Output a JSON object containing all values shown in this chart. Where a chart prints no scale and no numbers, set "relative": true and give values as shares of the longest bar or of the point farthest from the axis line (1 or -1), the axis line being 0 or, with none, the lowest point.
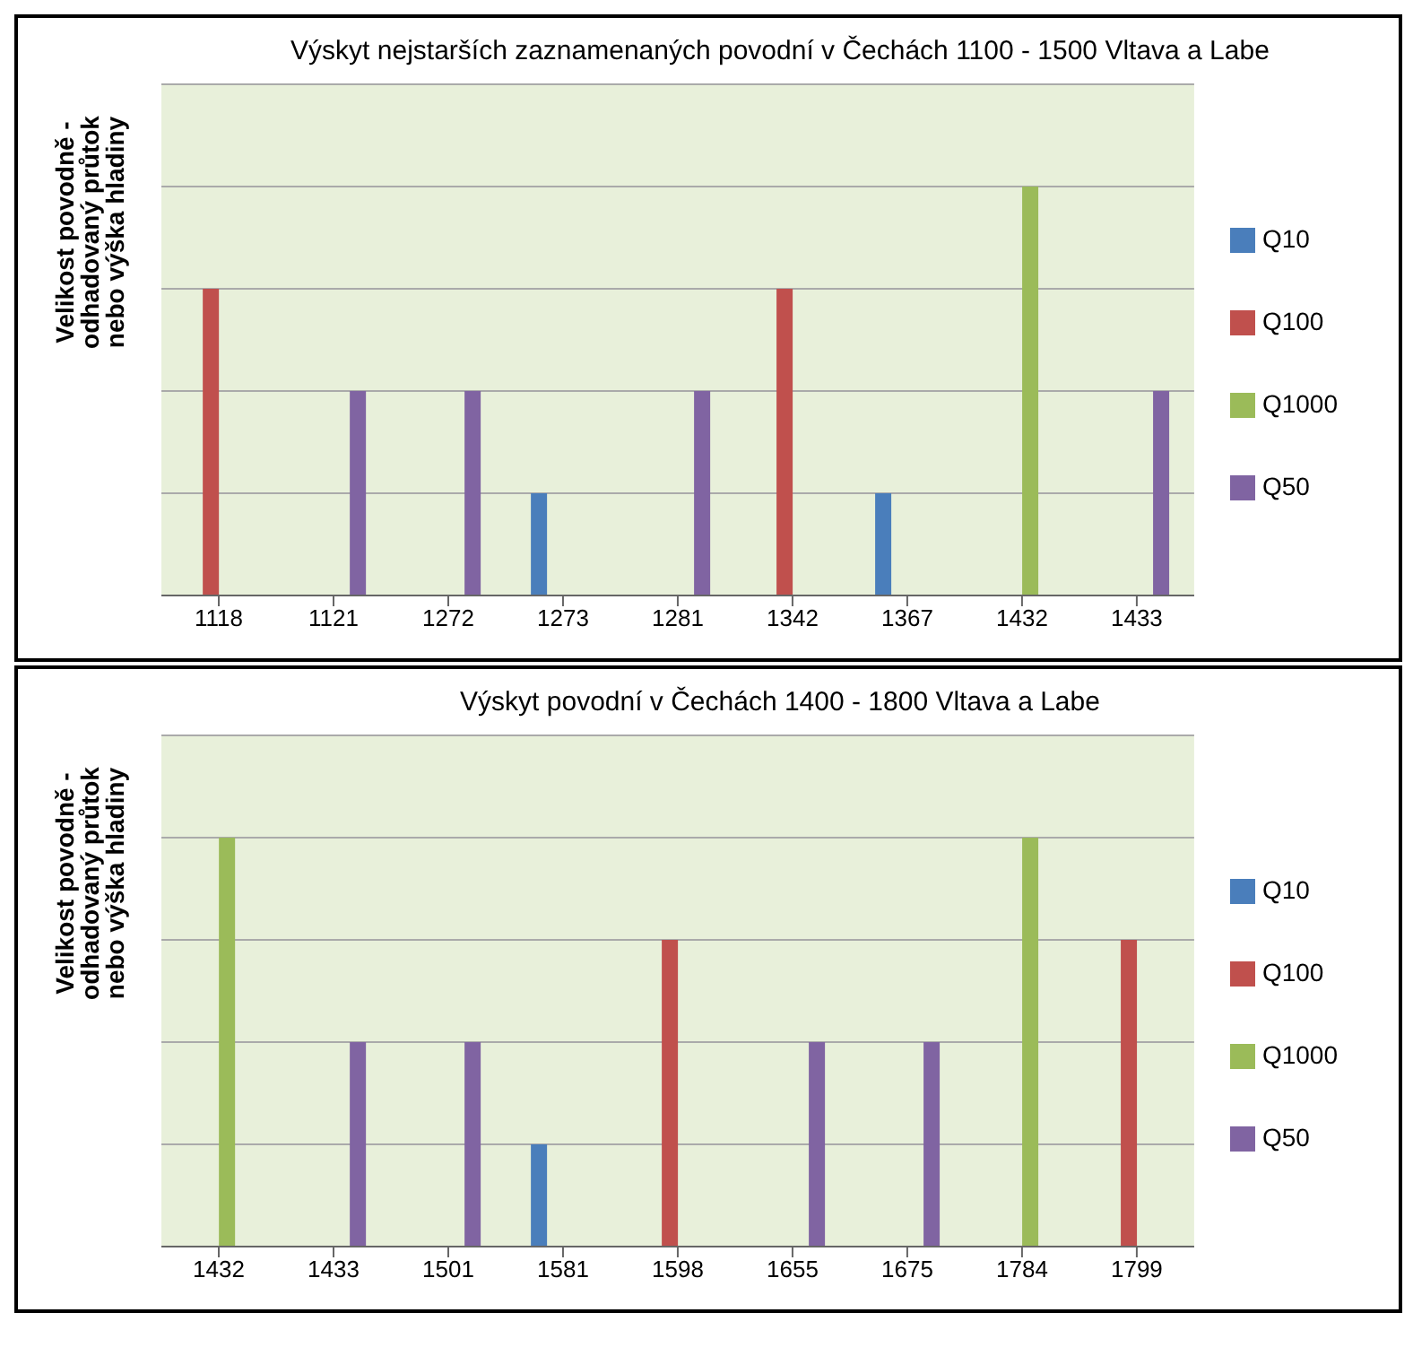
{
  "chart_data": [
    {
      "type": "bar",
      "title": "Výskyt nejstarších zaznamenaných povodní v Čechách 1100 - 1500  Vltava a Labe",
      "ylabel": "Velikost povodně - odhadovaný průtok nebo výška hladiny",
      "relative": true,
      "grid": "y",
      "legend": "right",
      "categories": [
        "1118",
        "1121",
        "1272",
        "1273",
        "1281",
        "1342",
        "1367",
        "1432",
        "1433"
      ],
      "series": [
        {
          "name": "Q10",
          "color": "#4a7ebb",
          "values": [
            null,
            null,
            null,
            0.25,
            null,
            null,
            0.25,
            null,
            null
          ]
        },
        {
          "name": "Q100",
          "color": "#c0504d",
          "values": [
            0.75,
            null,
            null,
            null,
            null,
            0.75,
            null,
            null,
            null
          ]
        },
        {
          "name": "Q1000",
          "color": "#9bbb59",
          "values": [
            null,
            null,
            null,
            null,
            null,
            null,
            null,
            1,
            null
          ]
        },
        {
          "name": "Q50",
          "color": "#8064a2",
          "values": [
            null,
            0.5,
            0.5,
            null,
            0.5,
            null,
            null,
            null,
            0.5
          ]
        }
      ]
    },
    {
      "type": "bar",
      "title": "Výskyt povodní v Čechách 1400 - 1800 Vltava a Labe",
      "ylabel": "Velikost povodně - odhadovaný průtok nebo výška hladiny",
      "relative": true,
      "grid": "y",
      "legend": "right",
      "categories": [
        "1432",
        "1433",
        "1501",
        "1581",
        "1598",
        "1655",
        "1675",
        "1784",
        "1799"
      ],
      "series": [
        {
          "name": "Q10",
          "color": "#4a7ebb",
          "values": [
            null,
            null,
            null,
            0.25,
            null,
            null,
            null,
            null,
            null
          ]
        },
        {
          "name": "Q100",
          "color": "#c0504d",
          "values": [
            null,
            null,
            null,
            null,
            0.75,
            null,
            null,
            null,
            0.75
          ]
        },
        {
          "name": "Q1000",
          "color": "#9bbb59",
          "values": [
            1,
            null,
            null,
            null,
            null,
            null,
            null,
            1,
            null
          ]
        },
        {
          "name": "Q50",
          "color": "#8064a2",
          "values": [
            null,
            0.5,
            0.5,
            null,
            null,
            0.5,
            0.5,
            null,
            null
          ]
        }
      ]
    }
  ]
}
